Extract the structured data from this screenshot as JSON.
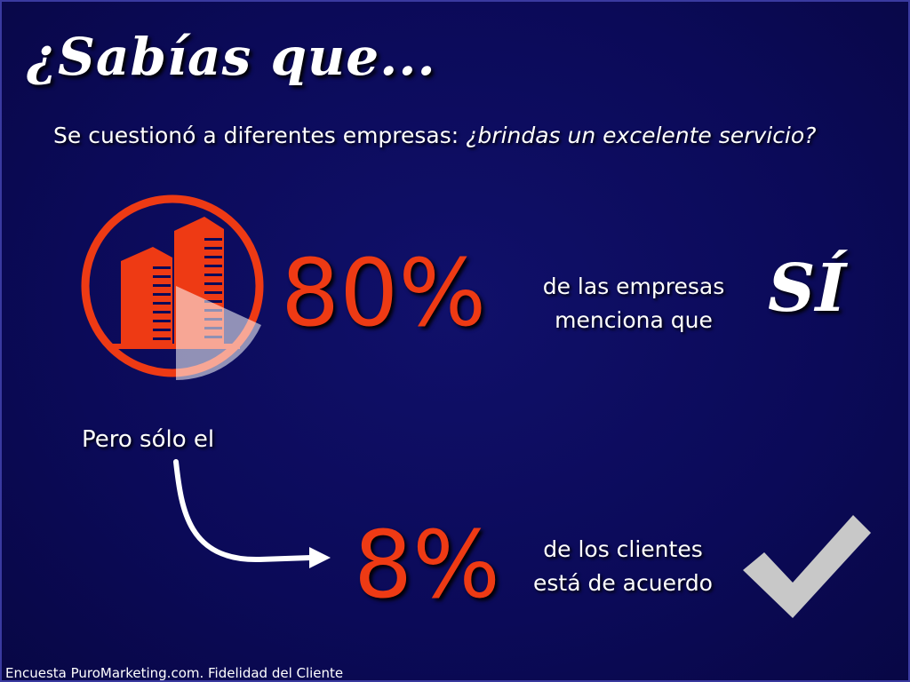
{
  "title": "¿Sabías que...",
  "subtitle": {
    "lead": "Se cuestionó a diferentes empresas: ",
    "question": "¿brindas un excelente servicio?"
  },
  "stat1": {
    "value": "80%",
    "desc_line1": "de las empresas",
    "desc_line2": "menciona que",
    "answer": "SÍ"
  },
  "connector_text": "Pero sólo el",
  "stat2": {
    "value": "8%",
    "desc_line1": "de los clientes",
    "desc_line2": "está de acuerdo"
  },
  "source": "Encuesta PuroMarketing.com. Fidelidad del Cliente",
  "colors": {
    "background": "#0b0a58",
    "accent": "#ee3a14",
    "text": "#ffffff",
    "check": "#c8c8c8"
  },
  "icons": [
    "buildings-icon",
    "pie-wedge-icon",
    "curved-arrow-icon",
    "checkmark-icon"
  ]
}
